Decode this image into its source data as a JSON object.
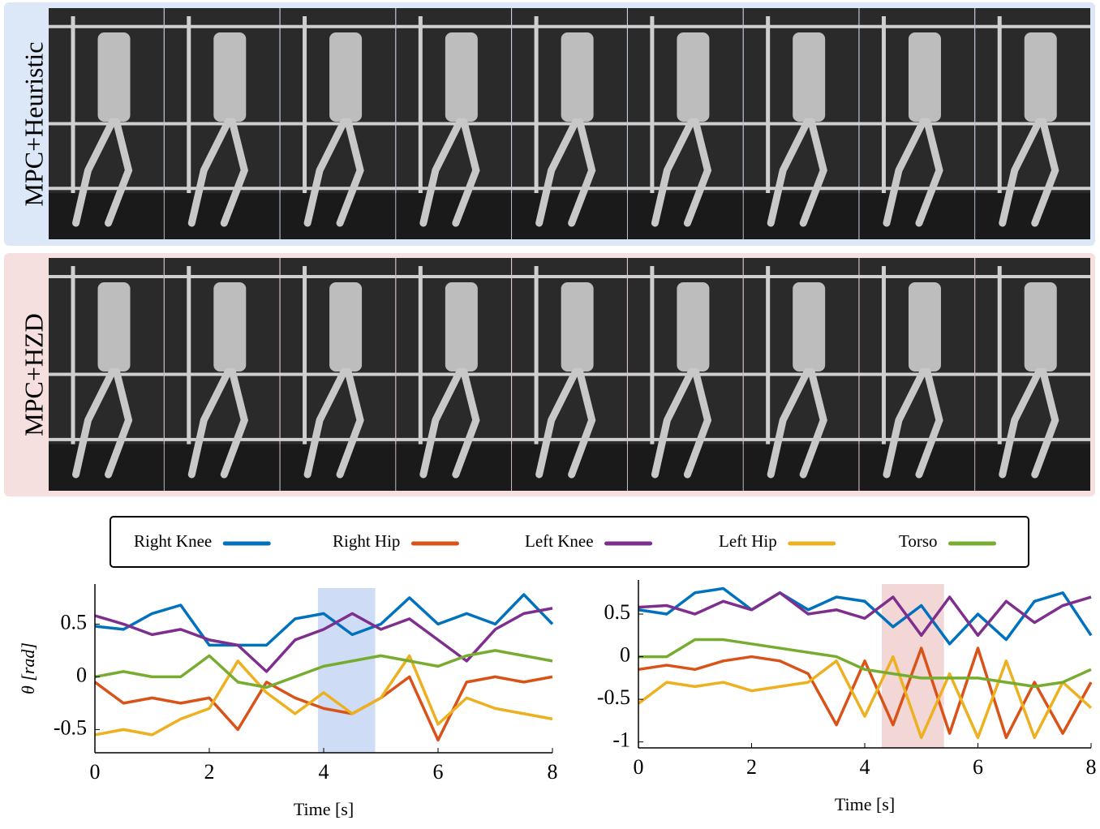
{
  "panels": [
    {
      "label": "MPC+Heuristic"
    },
    {
      "label": "MPC+HZD"
    }
  ],
  "chart_data": [
    {
      "type": "line",
      "x_label": "Time [s]",
      "y_label": "θ [rad]",
      "x": [
        0,
        0.5,
        1,
        1.5,
        2,
        2.5,
        3,
        3.5,
        4,
        4.5,
        5,
        5.5,
        6,
        6.5,
        7,
        7.5,
        8
      ],
      "xlim": [
        0,
        8
      ],
      "xticks": [
        0,
        2,
        4,
        6,
        8
      ],
      "ylim": [
        -0.72,
        0.88
      ],
      "yticks": [
        -0.5,
        0,
        0.5
      ],
      "highlight": {
        "range": [
          3.9,
          4.9
        ],
        "color": "#cfdcf5"
      },
      "series": [
        {
          "name": "Right Knee",
          "color": "#0072bd",
          "values": [
            0.48,
            0.45,
            0.6,
            0.68,
            0.3,
            0.3,
            0.3,
            0.55,
            0.6,
            0.4,
            0.5,
            0.75,
            0.5,
            0.6,
            0.5,
            0.78,
            0.5
          ]
        },
        {
          "name": "Right Hip",
          "color": "#d95319",
          "values": [
            -0.05,
            -0.25,
            -0.2,
            -0.25,
            -0.2,
            -0.5,
            -0.05,
            -0.2,
            -0.3,
            -0.35,
            -0.2,
            0.0,
            -0.6,
            -0.05,
            0.0,
            -0.05,
            0.0
          ]
        },
        {
          "name": "Left Knee",
          "color": "#7e2f8e",
          "values": [
            0.58,
            0.5,
            0.4,
            0.45,
            0.35,
            0.3,
            0.05,
            0.35,
            0.45,
            0.6,
            0.45,
            0.55,
            0.35,
            0.15,
            0.45,
            0.6,
            0.65
          ]
        },
        {
          "name": "Left Hip",
          "color": "#edb120",
          "values": [
            -0.55,
            -0.5,
            -0.55,
            -0.4,
            -0.3,
            0.15,
            -0.15,
            -0.35,
            -0.15,
            -0.35,
            -0.2,
            0.2,
            -0.45,
            -0.2,
            -0.3,
            -0.35,
            -0.4
          ]
        },
        {
          "name": "Torso",
          "color": "#77ac30",
          "values": [
            0.0,
            0.05,
            0.0,
            0.0,
            0.2,
            -0.05,
            -0.1,
            0.0,
            0.1,
            0.15,
            0.2,
            0.15,
            0.1,
            0.2,
            0.25,
            0.2,
            0.15
          ]
        }
      ]
    },
    {
      "type": "line",
      "x_label": "Time [s]",
      "x": [
        0,
        0.5,
        1,
        1.5,
        2,
        2.5,
        3,
        3.5,
        4,
        4.5,
        5,
        5.5,
        6,
        6.5,
        7,
        7.5,
        8
      ],
      "xlim": [
        0,
        8
      ],
      "xticks": [
        0,
        2,
        4,
        6,
        8
      ],
      "ylim": [
        -1.07,
        0.9
      ],
      "yticks": [
        -1,
        -0.5,
        0,
        0.5
      ],
      "highlight": {
        "range": [
          4.3,
          5.4
        ],
        "color": "#f3d6d6"
      },
      "series": [
        {
          "name": "Right Knee",
          "color": "#0072bd",
          "values": [
            0.55,
            0.5,
            0.75,
            0.8,
            0.55,
            0.75,
            0.55,
            0.7,
            0.65,
            0.35,
            0.6,
            0.15,
            0.5,
            0.2,
            0.65,
            0.75,
            0.25
          ]
        },
        {
          "name": "Right Hip",
          "color": "#d95319",
          "values": [
            -0.15,
            -0.1,
            -0.15,
            -0.05,
            0.0,
            -0.05,
            -0.2,
            -0.8,
            -0.05,
            -0.8,
            0.1,
            -0.9,
            0.1,
            -0.95,
            -0.3,
            -0.9,
            -0.3
          ]
        },
        {
          "name": "Left Knee",
          "color": "#7e2f8e",
          "values": [
            0.58,
            0.6,
            0.5,
            0.65,
            0.55,
            0.75,
            0.5,
            0.55,
            0.45,
            0.7,
            0.25,
            0.7,
            0.25,
            0.65,
            0.4,
            0.6,
            0.7
          ]
        },
        {
          "name": "Left Hip",
          "color": "#edb120",
          "values": [
            -0.55,
            -0.3,
            -0.35,
            -0.3,
            -0.4,
            -0.35,
            -0.3,
            -0.05,
            -0.7,
            0.0,
            -0.95,
            -0.2,
            -0.95,
            -0.05,
            -0.95,
            -0.3,
            -0.6
          ]
        },
        {
          "name": "Torso",
          "color": "#77ac30",
          "values": [
            0.0,
            0.0,
            0.2,
            0.2,
            0.15,
            0.1,
            0.05,
            0.0,
            -0.15,
            -0.2,
            -0.25,
            -0.25,
            -0.25,
            -0.3,
            -0.35,
            -0.3,
            -0.15
          ]
        }
      ]
    }
  ]
}
